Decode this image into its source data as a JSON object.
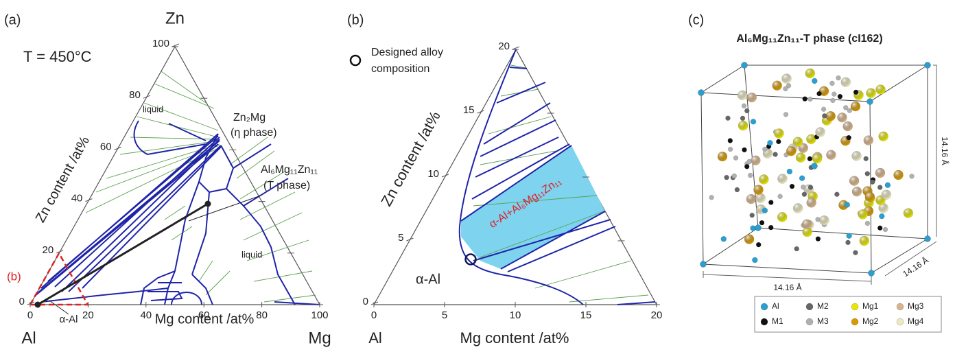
{
  "panel_a": {
    "label": "(a)",
    "corner_top": "Zn",
    "corner_left": "Al",
    "corner_right": "Mg",
    "temperature": "T = 450°C",
    "left_axis_title": "Zn content /at%",
    "bottom_axis_title": "Mg content /at%",
    "left_ticks": [
      0,
      20,
      40,
      60,
      80,
      100
    ],
    "bottom_ticks": [
      0,
      20,
      40,
      60,
      80,
      100
    ],
    "liquid_upper": "liquid",
    "liquid_lower": "liquid",
    "eta_formula": "Zn₂Mg",
    "eta_name": "(η phase)",
    "t_formula": "Al₆Mg₁₁Zn₁₁",
    "t_name": "(T phase)",
    "inset_label": "(b)",
    "alpha_label": "α-Al"
  },
  "panel_b": {
    "label": "(b)",
    "legend_lines": [
      "Designed alloy",
      "composition"
    ],
    "left_axis_title": "Zn content /at%",
    "bottom_axis_title": "Mg content /at%",
    "corner_left": "Al",
    "left_ticks": [
      0,
      5,
      10,
      15,
      20
    ],
    "bottom_ticks": [
      0,
      5,
      10,
      15,
      20
    ],
    "alpha_label": "α-Al",
    "region_label": "α-Al+Al₆Mg₁₁Zn₁₁"
  },
  "panel_c": {
    "label": "(c)",
    "title": "Al₆Mg₁₁Zn₁₁-T phase (cI162)",
    "dim_front": "14.16 Å",
    "dim_side": "14.16 Å",
    "dim_vertical": "14.16 Å",
    "legend": [
      {
        "name": "Al",
        "color": "#2a9fd0"
      },
      {
        "name": "M1",
        "color": "#111111"
      },
      {
        "name": "M2",
        "color": "#666666"
      },
      {
        "name": "M3",
        "color": "#b0b0b0"
      },
      {
        "name": "Mg1",
        "color": "#e6e600"
      },
      {
        "name": "Mg2",
        "color": "#d99a00"
      },
      {
        "name": "Mg3",
        "color": "#d8b48a"
      },
      {
        "name": "Mg4",
        "color": "#ece8c0"
      }
    ]
  }
}
